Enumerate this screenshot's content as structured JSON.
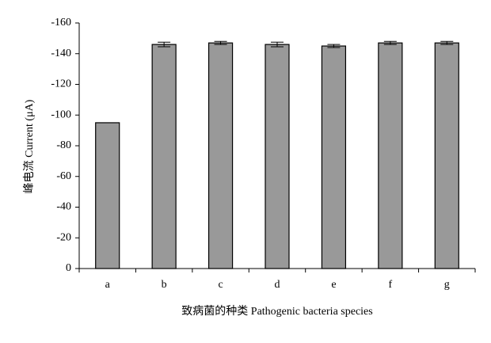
{
  "chart_data": {
    "type": "bar",
    "x_label": "致病菌的种类 Pathogenic bacteria species",
    "y_label": "峰电流 Current (μA)",
    "categories": [
      "a",
      "b",
      "c",
      "d",
      "e",
      "f",
      "g"
    ],
    "values": [
      -95,
      -146,
      -147,
      -146,
      -145,
      -147,
      -147
    ],
    "errors": [
      null,
      1.5,
      1,
      1.5,
      1,
      1,
      1
    ],
    "color": "#999999",
    "ylim": [
      0,
      -160
    ],
    "yticks": [
      -160,
      -140,
      -120,
      -100,
      -80,
      -60,
      -40,
      -20,
      0
    ],
    "grid": false
  }
}
